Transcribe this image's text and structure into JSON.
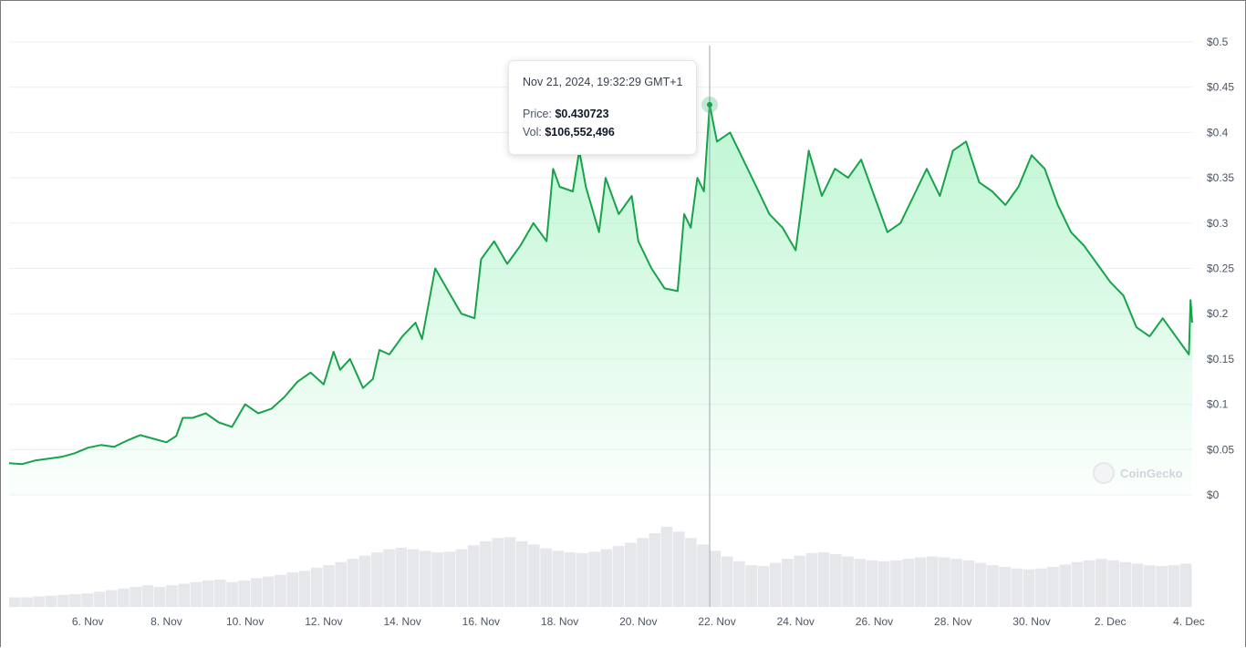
{
  "chart_data": {
    "type": "area",
    "y_axis_side": "right",
    "ylim": [
      0,
      0.5
    ],
    "y_ticks": [
      {
        "value": 0.5,
        "label": "$0.5"
      },
      {
        "value": 0.45,
        "label": "$0.45"
      },
      {
        "value": 0.4,
        "label": "$0.4"
      },
      {
        "value": 0.35,
        "label": "$0.35"
      },
      {
        "value": 0.3,
        "label": "$0.3"
      },
      {
        "value": 0.25,
        "label": "$0.25"
      },
      {
        "value": 0.2,
        "label": "$0.2"
      },
      {
        "value": 0.15,
        "label": "$0.15"
      },
      {
        "value": 0.1,
        "label": "$0.1"
      },
      {
        "value": 0.05,
        "label": "$0.05"
      },
      {
        "value": 0,
        "label": "$0"
      }
    ],
    "xlim": [
      "2024-11-04T00:00",
      "2024-12-04T02:00"
    ],
    "x_ticks": [
      {
        "date": "2024-11-06",
        "label": "6. Nov"
      },
      {
        "date": "2024-11-08",
        "label": "8. Nov"
      },
      {
        "date": "2024-11-10",
        "label": "10. Nov"
      },
      {
        "date": "2024-11-12",
        "label": "12. Nov"
      },
      {
        "date": "2024-11-14",
        "label": "14. Nov"
      },
      {
        "date": "2024-11-16",
        "label": "16. Nov"
      },
      {
        "date": "2024-11-18",
        "label": "18. Nov"
      },
      {
        "date": "2024-11-20",
        "label": "20. Nov"
      },
      {
        "date": "2024-11-22",
        "label": "22. Nov"
      },
      {
        "date": "2024-11-24",
        "label": "24. Nov"
      },
      {
        "date": "2024-11-26",
        "label": "26. Nov"
      },
      {
        "date": "2024-11-28",
        "label": "28. Nov"
      },
      {
        "date": "2024-11-30",
        "label": "30. Nov"
      },
      {
        "date": "2024-12-02",
        "label": "2. Dec"
      },
      {
        "date": "2024-12-04",
        "label": "4. Dec"
      }
    ],
    "grid": true,
    "series": [
      {
        "color": "#16a34a",
        "points": [
          [
            "2024-11-04T00:00",
            0.035
          ],
          [
            "2024-11-04T08:00",
            0.034
          ],
          [
            "2024-11-04T16:00",
            0.038
          ],
          [
            "2024-11-05T00:00",
            0.04
          ],
          [
            "2024-11-05T08:00",
            0.042
          ],
          [
            "2024-11-05T16:00",
            0.046
          ],
          [
            "2024-11-06T00:00",
            0.052
          ],
          [
            "2024-11-06T08:00",
            0.055
          ],
          [
            "2024-11-06T16:00",
            0.053
          ],
          [
            "2024-11-07T00:00",
            0.06
          ],
          [
            "2024-11-07T08:00",
            0.066
          ],
          [
            "2024-11-07T16:00",
            0.062
          ],
          [
            "2024-11-08T00:00",
            0.058
          ],
          [
            "2024-11-08T06:00",
            0.065
          ],
          [
            "2024-11-08T10:00",
            0.085
          ],
          [
            "2024-11-08T16:00",
            0.085
          ],
          [
            "2024-11-09T00:00",
            0.09
          ],
          [
            "2024-11-09T08:00",
            0.08
          ],
          [
            "2024-11-09T16:00",
            0.075
          ],
          [
            "2024-11-10T00:00",
            0.1
          ],
          [
            "2024-11-10T08:00",
            0.09
          ],
          [
            "2024-11-10T16:00",
            0.095
          ],
          [
            "2024-11-11T00:00",
            0.108
          ],
          [
            "2024-11-11T08:00",
            0.125
          ],
          [
            "2024-11-11T16:00",
            0.135
          ],
          [
            "2024-11-12T00:00",
            0.122
          ],
          [
            "2024-11-12T06:00",
            0.158
          ],
          [
            "2024-11-12T10:00",
            0.138
          ],
          [
            "2024-11-12T16:00",
            0.15
          ],
          [
            "2024-11-13T00:00",
            0.118
          ],
          [
            "2024-11-13T06:00",
            0.128
          ],
          [
            "2024-11-13T10:00",
            0.16
          ],
          [
            "2024-11-13T16:00",
            0.155
          ],
          [
            "2024-11-14T00:00",
            0.175
          ],
          [
            "2024-11-14T08:00",
            0.19
          ],
          [
            "2024-11-14T12:00",
            0.172
          ],
          [
            "2024-11-14T20:00",
            0.25
          ],
          [
            "2024-11-15T04:00",
            0.225
          ],
          [
            "2024-11-15T12:00",
            0.2
          ],
          [
            "2024-11-15T20:00",
            0.195
          ],
          [
            "2024-11-16T00:00",
            0.26
          ],
          [
            "2024-11-16T08:00",
            0.28
          ],
          [
            "2024-11-16T16:00",
            0.255
          ],
          [
            "2024-11-17T00:00",
            0.275
          ],
          [
            "2024-11-17T08:00",
            0.3
          ],
          [
            "2024-11-17T16:00",
            0.28
          ],
          [
            "2024-11-17T20:00",
            0.36
          ],
          [
            "2024-11-18T00:00",
            0.34
          ],
          [
            "2024-11-18T08:00",
            0.335
          ],
          [
            "2024-11-18T12:00",
            0.38
          ],
          [
            "2024-11-18T16:00",
            0.34
          ],
          [
            "2024-11-19T00:00",
            0.29
          ],
          [
            "2024-11-19T04:00",
            0.35
          ],
          [
            "2024-11-19T12:00",
            0.31
          ],
          [
            "2024-11-19T20:00",
            0.33
          ],
          [
            "2024-11-20T00:00",
            0.28
          ],
          [
            "2024-11-20T08:00",
            0.25
          ],
          [
            "2024-11-20T16:00",
            0.228
          ],
          [
            "2024-11-21T00:00",
            0.225
          ],
          [
            "2024-11-21T04:00",
            0.31
          ],
          [
            "2024-11-21T08:00",
            0.295
          ],
          [
            "2024-11-21T12:00",
            0.35
          ],
          [
            "2024-11-21T16:00",
            0.335
          ],
          [
            "2024-11-21T19:32",
            0.430723
          ],
          [
            "2024-11-22T00:00",
            0.39
          ],
          [
            "2024-11-22T08:00",
            0.4
          ],
          [
            "2024-11-22T16:00",
            0.37
          ],
          [
            "2024-11-23T00:00",
            0.34
          ],
          [
            "2024-11-23T08:00",
            0.31
          ],
          [
            "2024-11-23T16:00",
            0.295
          ],
          [
            "2024-11-24T00:00",
            0.27
          ],
          [
            "2024-11-24T08:00",
            0.38
          ],
          [
            "2024-11-24T16:00",
            0.33
          ],
          [
            "2024-11-25T00:00",
            0.36
          ],
          [
            "2024-11-25T08:00",
            0.35
          ],
          [
            "2024-11-25T16:00",
            0.37
          ],
          [
            "2024-11-26T00:00",
            0.33
          ],
          [
            "2024-11-26T08:00",
            0.29
          ],
          [
            "2024-11-26T16:00",
            0.3
          ],
          [
            "2024-11-27T00:00",
            0.33
          ],
          [
            "2024-11-27T08:00",
            0.36
          ],
          [
            "2024-11-27T16:00",
            0.33
          ],
          [
            "2024-11-28T00:00",
            0.38
          ],
          [
            "2024-11-28T08:00",
            0.39
          ],
          [
            "2024-11-28T16:00",
            0.345
          ],
          [
            "2024-11-29T00:00",
            0.335
          ],
          [
            "2024-11-29T08:00",
            0.32
          ],
          [
            "2024-11-29T16:00",
            0.34
          ],
          [
            "2024-11-30T00:00",
            0.375
          ],
          [
            "2024-11-30T08:00",
            0.36
          ],
          [
            "2024-11-30T16:00",
            0.32
          ],
          [
            "2024-12-01T00:00",
            0.29
          ],
          [
            "2024-12-01T08:00",
            0.275
          ],
          [
            "2024-12-01T16:00",
            0.255
          ],
          [
            "2024-12-02T00:00",
            0.235
          ],
          [
            "2024-12-02T08:00",
            0.22
          ],
          [
            "2024-12-02T16:00",
            0.185
          ],
          [
            "2024-12-03T00:00",
            0.175
          ],
          [
            "2024-12-03T08:00",
            0.195
          ],
          [
            "2024-12-03T16:00",
            0.175
          ],
          [
            "2024-12-04T00:00",
            0.155
          ],
          [
            "2024-12-04T01:00",
            0.215
          ],
          [
            "2024-12-04T02:00",
            0.19
          ]
        ]
      }
    ],
    "volume_bars": [
      12,
      12,
      13,
      14,
      15,
      16,
      17,
      19,
      21,
      23,
      25,
      27,
      25,
      27,
      29,
      31,
      33,
      34,
      31,
      33,
      36,
      38,
      40,
      43,
      45,
      49,
      52,
      56,
      60,
      64,
      68,
      72,
      74,
      72,
      70,
      68,
      69,
      72,
      77,
      82,
      86,
      87,
      82,
      78,
      73,
      70,
      68,
      67,
      69,
      72,
      76,
      80,
      86,
      92,
      100,
      94,
      86,
      78,
      70,
      63,
      57,
      52,
      51,
      55,
      60,
      64,
      67,
      68,
      66,
      63,
      60,
      58,
      57,
      58,
      60,
      62,
      63,
      62,
      60,
      58,
      55,
      52,
      50,
      48,
      47,
      48,
      50,
      53,
      56,
      58,
      60,
      58,
      56,
      54,
      52,
      51,
      52,
      54
    ],
    "tooltip": {
      "date": "Nov 21, 2024, 19:32:29 GMT+1",
      "price_label": "Price:",
      "price_value": "$0.430723",
      "vol_label": "Vol:",
      "vol_value": "$106,552,496"
    },
    "crosshair_date": "2024-11-21T19:32"
  },
  "watermark": "CoinGecko",
  "colors": {
    "line": "#16a34a",
    "area_top": "#86efac",
    "volume": "#e5e7eb",
    "grid": "#eceff3",
    "crosshair": "#9ca3af"
  }
}
